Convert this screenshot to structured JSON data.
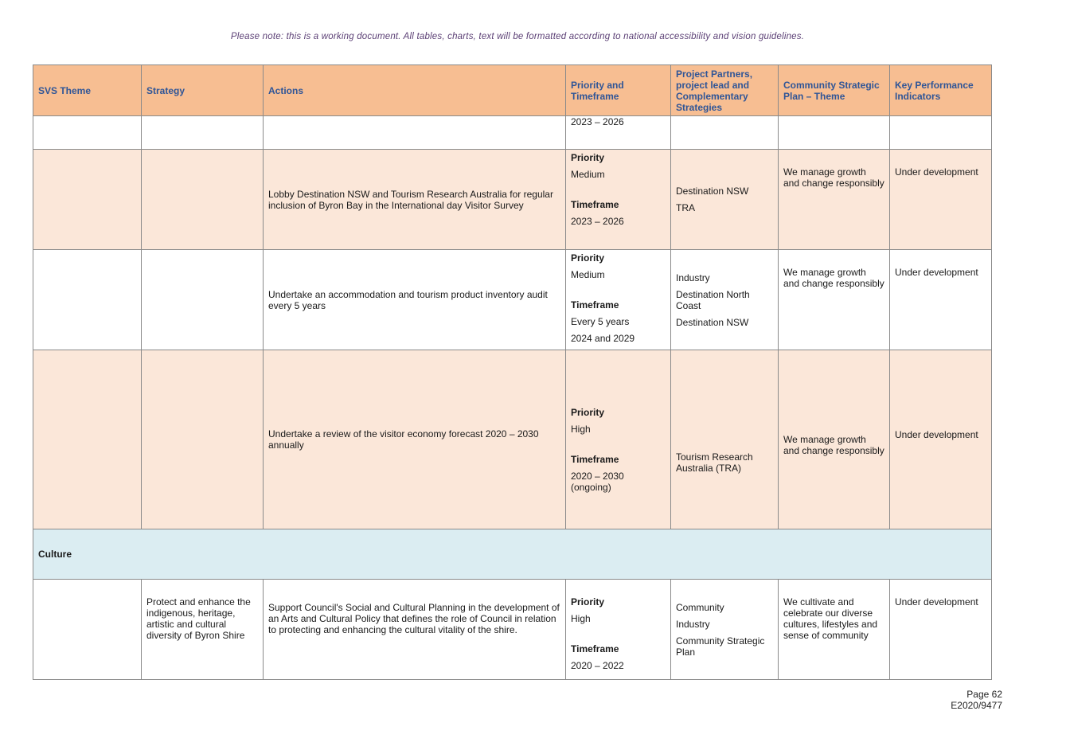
{
  "note": "Please note: this is a working document. All tables, charts, text will be formatted according to national accessibility and vision guidelines.",
  "table": {
    "headers": [
      "SVS Theme",
      "Strategy",
      "Actions",
      "Priority and Timeframe",
      "Project Partners, project lead and Complementary Strategies",
      "Community Strategic Plan – Theme",
      "Key Performance Indicators"
    ],
    "row0": {
      "timeframe": "2023 – 2026"
    },
    "row1": {
      "action": "Lobby Destination NSW and Tourism Research Australia for regular inclusion of Byron Bay in the International day Visitor Survey",
      "priority_label": "Priority",
      "priority": "Medium",
      "timeframe_label": "Timeframe",
      "timeframe": "2023 – 2026",
      "partners": [
        "Destination NSW",
        "TRA"
      ],
      "csp_theme": "We manage growth and change responsibly",
      "kpi": "Under development"
    },
    "row2": {
      "action": "Undertake an accommodation and tourism product inventory audit every 5 years",
      "priority_label": "Priority",
      "priority": "Medium",
      "timeframe_label": "Timeframe",
      "timeframe": "Every 5 years",
      "timeframe_extra": "2024 and 2029",
      "partners": [
        "Industry",
        "Destination North Coast",
        "Destination NSW"
      ],
      "csp_theme": "We manage growth and change responsibly",
      "kpi": "Under development"
    },
    "row3": {
      "action": "Undertake a review of the visitor economy forecast 2020 – 2030 annually",
      "priority_label": "Priority",
      "priority": "High",
      "timeframe_label": "Timeframe",
      "timeframe": "2020 – 2030 (ongoing)",
      "partners": [
        "Tourism Research Australia (TRA)"
      ],
      "csp_theme": "We manage growth and change responsibly",
      "kpi": "Under development"
    },
    "section": "Culture",
    "row4": {
      "strategy": "Protect and enhance the indigenous, heritage, artistic and cultural diversity of Byron Shire",
      "action": "Support Council's Social and Cultural Planning in the development of an Arts and Cultural Policy that defines the role of Council in relation to protecting and enhancing the cultural vitality of the shire.",
      "priority_label": "Priority",
      "priority": "High",
      "timeframe_label": "Timeframe",
      "timeframe": "2020 – 2022",
      "partners": [
        "Community",
        "Industry",
        "Community Strategic Plan"
      ],
      "csp_theme": "We cultivate and celebrate our diverse cultures, lifestyles and sense of community",
      "kpi": "Under development"
    }
  },
  "footer": {
    "page": "Page 62",
    "ref": "E2020/9477"
  }
}
